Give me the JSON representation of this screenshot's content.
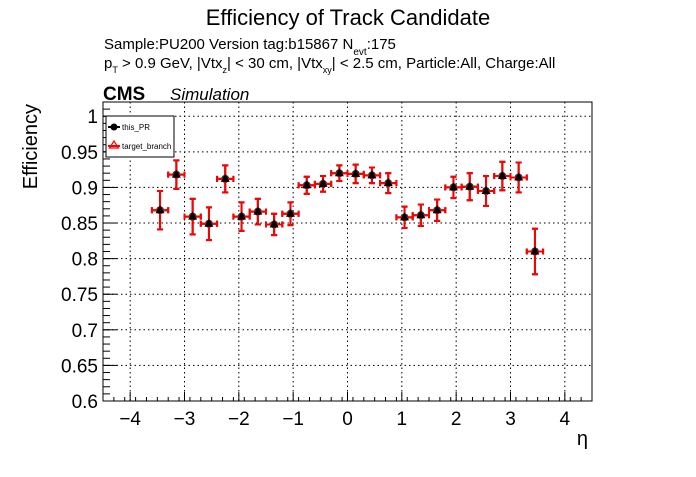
{
  "chart_data": {
    "type": "scatter",
    "title": "Efficiency of Track Candidate",
    "subtitle_line1": {
      "sample": "Sample:PU200   Version tag:b15867  N",
      "sub": "evt",
      "rest": ":175"
    },
    "subtitle_line2": {
      "p": "p",
      "p_sub": "T",
      "a": " > 0.9 GeV, |Vtx",
      "a_sub": "z",
      "b": "| < 30 cm, |Vtx",
      "b_sub": "xy",
      "c": "| < 2.5 cm, Particle:All, Charge:All"
    },
    "cms_label": "CMS",
    "cms_extra": "Simulation",
    "xlabel": "η",
    "ylabel": "Efficiency",
    "xlim": [
      -4.5,
      4.5
    ],
    "ylim": [
      0.6,
      1.02
    ],
    "xticks": [
      "−4",
      "−3",
      "−2",
      "−1",
      "0",
      "1",
      "2",
      "3",
      "4"
    ],
    "xtick_values": [
      -4,
      -3,
      -2,
      -1,
      0,
      1,
      2,
      3,
      4
    ],
    "yticks": [
      "0.6",
      "0.65",
      "0.7",
      "0.75",
      "0.8",
      "0.85",
      "0.9",
      "0.95",
      "1"
    ],
    "ytick_values": [
      0.6,
      0.65,
      0.7,
      0.75,
      0.8,
      0.85,
      0.9,
      0.95,
      1.0
    ],
    "grid": true,
    "legend_position": "top-left",
    "x": [
      -3.45,
      -3.15,
      -2.85,
      -2.55,
      -2.25,
      -1.95,
      -1.65,
      -1.35,
      -1.05,
      -0.75,
      -0.45,
      -0.15,
      0.15,
      0.45,
      0.75,
      1.05,
      1.35,
      1.65,
      1.95,
      2.25,
      2.55,
      2.85,
      3.15,
      3.45
    ],
    "x_err": 0.15,
    "series": [
      {
        "name": "this_PR",
        "color": "#000000",
        "values": [
          0.868,
          0.918,
          0.859,
          0.849,
          0.912,
          0.859,
          0.866,
          0.848,
          0.863,
          0.903,
          0.905,
          0.92,
          0.919,
          0.917,
          0.906,
          0.858,
          0.861,
          0.868,
          0.9,
          0.901,
          0.895,
          0.916,
          0.914,
          0.81
        ],
        "errors": [
          0.027,
          0.02,
          0.025,
          0.023,
          0.019,
          0.02,
          0.018,
          0.015,
          0.016,
          0.012,
          0.011,
          0.011,
          0.013,
          0.011,
          0.014,
          0.015,
          0.015,
          0.015,
          0.015,
          0.019,
          0.021,
          0.02,
          0.021,
          0.032
        ]
      },
      {
        "name": "target_branch",
        "color": "#ff0000",
        "values": [
          0.868,
          0.918,
          0.859,
          0.849,
          0.912,
          0.859,
          0.866,
          0.848,
          0.863,
          0.903,
          0.905,
          0.92,
          0.919,
          0.917,
          0.906,
          0.858,
          0.861,
          0.868,
          0.9,
          0.901,
          0.895,
          0.916,
          0.914,
          0.81
        ],
        "errors": [
          0.027,
          0.02,
          0.025,
          0.023,
          0.019,
          0.02,
          0.018,
          0.015,
          0.016,
          0.012,
          0.011,
          0.011,
          0.013,
          0.011,
          0.014,
          0.015,
          0.015,
          0.015,
          0.015,
          0.019,
          0.021,
          0.02,
          0.021,
          0.032
        ]
      }
    ]
  }
}
